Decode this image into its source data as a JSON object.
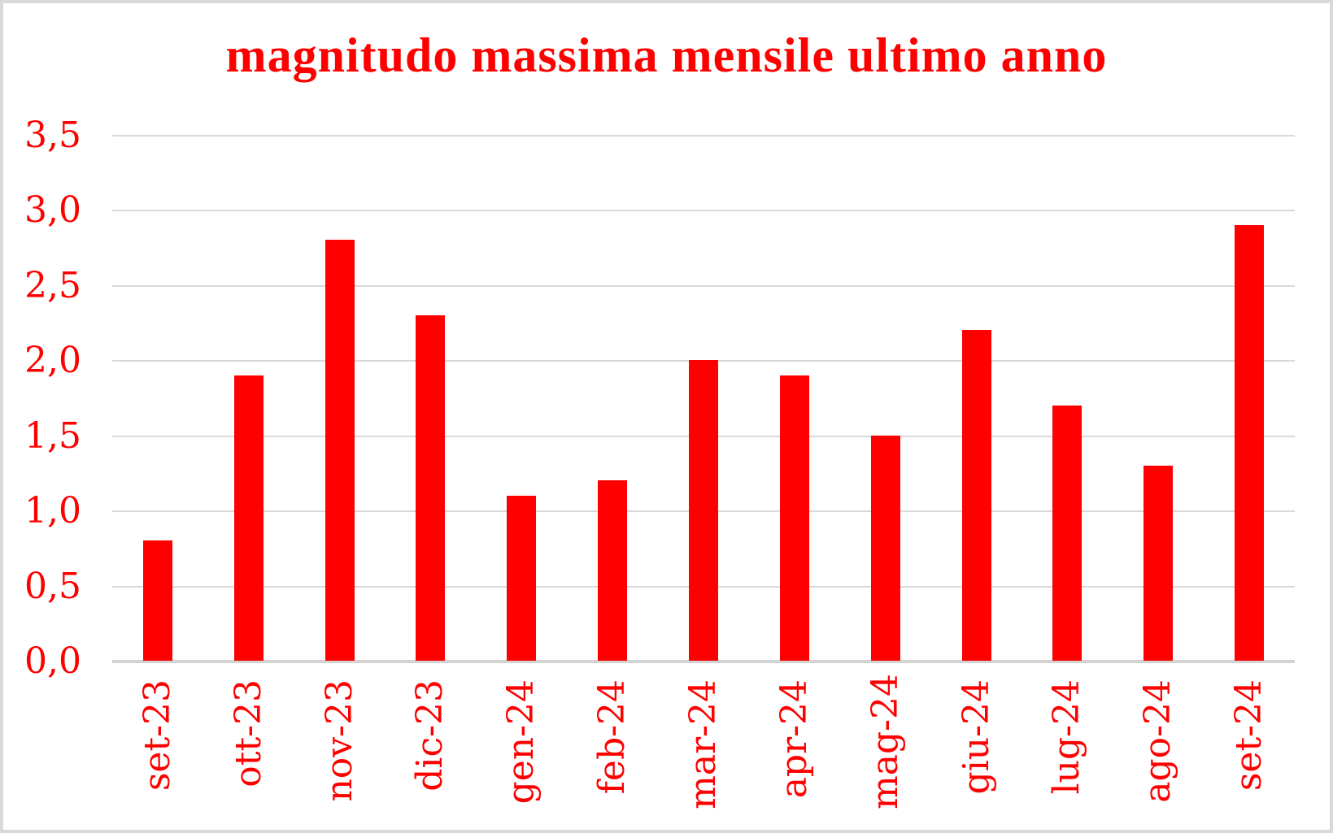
{
  "title": "magnitudo massima mensile ultimo anno",
  "colors": {
    "bar": "#ff0000",
    "text": "#ff0000",
    "gridline": "#d9d9d9",
    "axis_line": "#d3d3d3",
    "frame_border": "#d9d9d9",
    "background": "#ffffff"
  },
  "chart_data": {
    "type": "bar",
    "title": "magnitudo massima mensile ultimo anno",
    "categories": [
      "set-23",
      "ott-23",
      "nov-23",
      "dic-23",
      "gen-24",
      "feb-24",
      "mar-24",
      "apr-24",
      "mag-24",
      "giu-24",
      "lug-24",
      "ago-24",
      "set-24"
    ],
    "values": [
      0.8,
      1.9,
      2.8,
      2.3,
      1.1,
      1.2,
      2.0,
      1.9,
      1.5,
      2.2,
      1.7,
      1.3,
      2.9
    ],
    "xlabel": "",
    "ylabel": "",
    "ylim": [
      0,
      3.5
    ],
    "ytick_step": 0.5,
    "ytick_labels": [
      "0,0",
      "0,5",
      "1,0",
      "1,5",
      "2,0",
      "2,5",
      "3,0",
      "3,5"
    ],
    "x_tick_rotation_degrees": -90,
    "grid": true,
    "legend": false,
    "decimal_separator": ","
  }
}
